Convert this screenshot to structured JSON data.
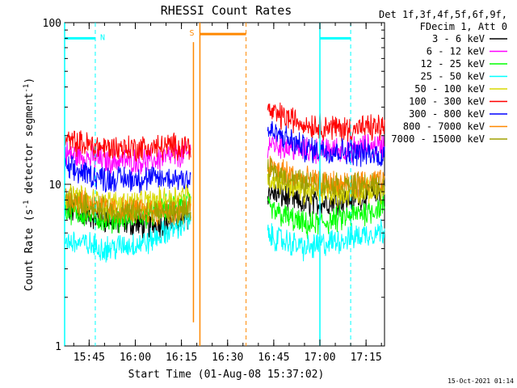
{
  "chart_data": {
    "type": "line",
    "title": "RHESSI Count Rates",
    "xlabel": "Start Time (01-Aug-08 15:37:02)",
    "ylabel_main": "Count Rate (s",
    "ylabel_sup1": "-1",
    "ylabel_mid": " detector segment",
    "ylabel_sup2": "-1",
    "ylabel_end": ")",
    "yscale": "log",
    "ylim": [
      1,
      100
    ],
    "ytick_labels": [
      "1",
      "10",
      "100"
    ],
    "xlim": [
      "15:37:02",
      "17:21:00"
    ],
    "xtick_labels": [
      "15:45",
      "16:00",
      "16:15",
      "16:30",
      "16:45",
      "17:00",
      "17:15"
    ],
    "legend_header": [
      "Det 1f,3f,4f,5f,6f,9f,",
      "FDecim 1, Att 0"
    ],
    "series": [
      {
        "name": "3 - 6 keV",
        "color": "#000000",
        "before": [
          7.0,
          6.0,
          5.5,
          6.3
        ],
        "after": [
          9.0,
          7.5,
          8.0,
          9.0
        ]
      },
      {
        "name": "6 - 12 keV",
        "color": "#ff00ff",
        "before": [
          15.5,
          14.0,
          14.0,
          15.5
        ],
        "after": [
          18.0,
          16.0,
          16.5,
          17.5
        ]
      },
      {
        "name": "12 - 25 keV",
        "color": "#00ff00",
        "before": [
          7.0,
          6.0,
          6.5,
          8.0
        ],
        "after": [
          7.0,
          5.5,
          6.2,
          7.3
        ]
      },
      {
        "name": "25 - 50 keV",
        "color": "#00ffff",
        "before": [
          4.5,
          4.0,
          4.4,
          6.0
        ],
        "after": [
          4.8,
          4.0,
          4.6,
          5.2
        ]
      },
      {
        "name": "50 - 100 keV",
        "color": "#d8d800",
        "before": [
          8.5,
          7.6,
          7.7,
          8.7
        ],
        "after": [
          11.0,
          9.0,
          8.8,
          9.3
        ]
      },
      {
        "name": "100 - 300 keV",
        "color": "#ff0000",
        "before": [
          18.5,
          16.8,
          16.8,
          17.5
        ],
        "after": [
          28.0,
          23.5,
          22.0,
          22.5
        ]
      },
      {
        "name": "300 - 800 keV",
        "color": "#0000ff",
        "before": [
          12.5,
          10.8,
          10.8,
          11.0
        ],
        "after": [
          21.5,
          16.5,
          16.0,
          15.0
        ]
      },
      {
        "name": "800 - 7000 keV",
        "color": "#ff8800",
        "before": [
          8.5,
          7.0,
          6.8,
          7.0
        ],
        "after": [
          13.0,
          10.5,
          10.0,
          10.2
        ]
      },
      {
        "name": "7000 - 15000 keV",
        "color": "#a0a000",
        "before": [
          8.0,
          6.8,
          6.6,
          6.8
        ],
        "after": [
          12.0,
          10.0,
          9.8,
          9.7
        ]
      }
    ],
    "data_gap": [
      "16:18:00",
      "16:43:00"
    ],
    "annotations": [
      {
        "label": "N",
        "color": "#00ffff",
        "bar": [
          "15:37:02",
          "15:47:00"
        ],
        "bar_y": 80,
        "markers": [
          "15:37:02",
          "15:47:00"
        ],
        "marker_style": "solid-dashed"
      },
      {
        "label": "S",
        "color": "#ff8800",
        "bar": [
          "16:21:00",
          "16:36:00"
        ],
        "bar_y": 85,
        "markers": [
          "16:21:00",
          "16:36:00"
        ],
        "marker_style": "solid-dashed"
      },
      {
        "label": "",
        "color": "#00ffff",
        "bar": [
          "17:00:00",
          "17:10:00"
        ],
        "bar_y": 80,
        "markers": [
          "17:00:00",
          "17:10:00"
        ],
        "marker_style": "solid-dashed"
      }
    ],
    "timestamp": "15-Oct-2021 01:14"
  }
}
